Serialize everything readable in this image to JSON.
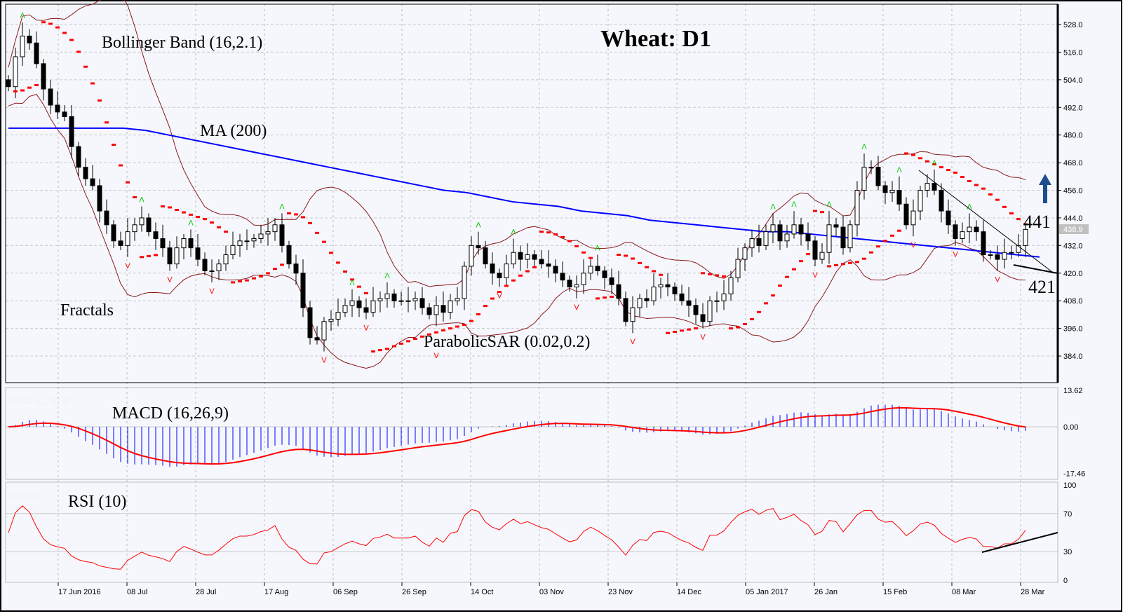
{
  "chart_data": [
    {
      "type": "candlestick",
      "title": "Wheat: D1",
      "ylim": [
        378,
        534
      ],
      "y_ticks": [
        "528.0",
        "516.0",
        "504.0",
        "492.0",
        "480.0",
        "468.0",
        "456.0",
        "444.0",
        "432.0",
        "420.0",
        "408.0",
        "396.0",
        "384.0"
      ],
      "x_ticks": [
        "17 Jun 2016",
        "08 Jul",
        "28 Jul",
        "17 Aug",
        "06 Sep",
        "26 Sep",
        "14 Oct",
        "03 Nov",
        "23 Nov",
        "14 Dec",
        "05 Jan 2017",
        "26 Jan",
        "15 Feb",
        "08 Mar",
        "28 Mar"
      ],
      "grid": true,
      "current_price_label": "438.9",
      "close": [
        501,
        514,
        523,
        520,
        511,
        500,
        493,
        490,
        488,
        475,
        466,
        461,
        458,
        447,
        441,
        434,
        432,
        438,
        441,
        444,
        438,
        435,
        431,
        424,
        431,
        435,
        431,
        426,
        421,
        421,
        424,
        428,
        432,
        434,
        434,
        435,
        437,
        438,
        441,
        432,
        424,
        420,
        405,
        392,
        391,
        399,
        400,
        403,
        406,
        408,
        405,
        403,
        408,
        409,
        411,
        408,
        408,
        408,
        409,
        405,
        402,
        406,
        403,
        408,
        409,
        423,
        432,
        431,
        424,
        420,
        418,
        424,
        429,
        426,
        428,
        426,
        424,
        423,
        420,
        417,
        414,
        415,
        420,
        423,
        421,
        418,
        415,
        409,
        399,
        405,
        409,
        408,
        414,
        415,
        414,
        411,
        408,
        406,
        402,
        399,
        408,
        408,
        411,
        418,
        426,
        431,
        435,
        432,
        438,
        441,
        434,
        437,
        441,
        437,
        434,
        426,
        429,
        441,
        440,
        431,
        441,
        456,
        466,
        466,
        458,
        455,
        456,
        450,
        441,
        447,
        456,
        459,
        456,
        447,
        441,
        435,
        438,
        440,
        438,
        428,
        428,
        426,
        429,
        429,
        432,
        439
      ],
      "ma200": [
        483,
        483,
        483,
        483,
        483,
        483,
        482,
        480,
        478,
        476,
        474,
        472,
        470,
        468,
        466,
        464,
        462,
        460,
        458,
        456,
        455,
        453,
        451,
        450,
        449,
        447,
        446,
        445,
        443,
        442,
        441,
        440,
        439,
        438,
        438,
        437,
        436,
        435,
        434,
        433,
        432,
        431,
        430,
        429,
        428,
        427
      ],
      "indicators": {
        "bollinger_label": "Bollinger Band (16,2.1)",
        "ma_label": "MA (200)",
        "fractals_label": "Fractals",
        "sar_label": "ParabolicSAR (0.02,0.2)"
      },
      "annotations": {
        "resistance": "441",
        "support": "421",
        "arrow": "up"
      },
      "colors": {
        "bull": "#ffffff",
        "bear": "#000000",
        "ma": "#0000ff",
        "bollinger": "#8b1a1a",
        "sar": "#ff0000",
        "fractal_up": "#00cc00",
        "fractal_down": "#ff0000",
        "arrow": "#1f4e8c"
      }
    },
    {
      "type": "macd",
      "label": "MACD (16,26,9)",
      "faint_label": "MACD (12, 26, 9)",
      "y_ticks": [
        "13.62",
        "0.00",
        "-17.46"
      ],
      "ylim": [
        -17.46,
        13.62
      ],
      "colors": {
        "histogram": "#0000ff",
        "signal": "#ff0000"
      }
    },
    {
      "type": "line",
      "label": "RSI (10)",
      "faint_label": "RSI (10)",
      "y_ticks": [
        "100",
        "70",
        "30",
        "0"
      ],
      "ylim": [
        0,
        100
      ],
      "colors": {
        "line": "#ff0000",
        "trendline": "#000000"
      }
    }
  ]
}
